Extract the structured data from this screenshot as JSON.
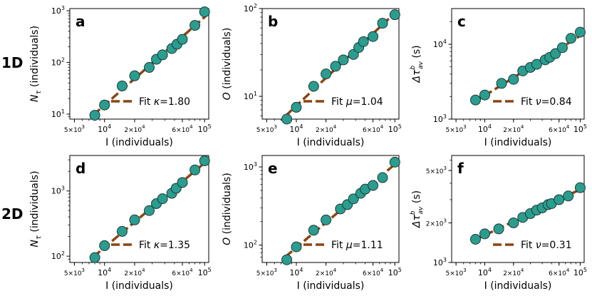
{
  "colors": {
    "marker_fill": "#2a9d8f",
    "marker_edge": "#1f3a36",
    "fit_line": "#8b4513"
  },
  "row_labels": [
    "1D",
    "2D"
  ],
  "chart_data": [
    {
      "type": "scatter",
      "panel": "a",
      "x": [
        8000,
        10000,
        15000,
        20000,
        28000,
        33000,
        38000,
        47000,
        53000,
        60000,
        80000,
        100000
      ],
      "y": [
        9.5,
        15,
        35,
        55,
        80,
        115,
        140,
        185,
        225,
        280,
        520,
        950
      ],
      "xlabel": "I (individuals)",
      "ylabel_main": "N",
      "ylabel_sub": "τ",
      "ylabel_rest": " (individuals)",
      "xlim": [
        4500,
        110000
      ],
      "ylim": [
        8,
        1100
      ],
      "xticks": [
        {
          "v": 5000,
          "m": "5",
          "e": "3"
        },
        {
          "v": 10000,
          "m": "",
          "e": "4"
        },
        {
          "v": 20000,
          "m": "2",
          "e": "4"
        },
        {
          "v": 60000,
          "m": "6",
          "e": "4"
        },
        {
          "v": 100000,
          "m": "",
          "e": "5"
        }
      ],
      "yticks": [
        {
          "v": 10,
          "e": "1"
        },
        {
          "v": 100,
          "e": "2"
        },
        {
          "v": 1000,
          "e": "3"
        }
      ],
      "legend_label": "Fit",
      "param_name": "κ",
      "param_value": "=1.80"
    },
    {
      "type": "scatter",
      "panel": "b",
      "x": [
        8000,
        10000,
        15000,
        20000,
        25000,
        30000,
        38000,
        43000,
        48000,
        60000,
        75000,
        100000
      ],
      "y": [
        5.5,
        7.5,
        13,
        18,
        22,
        26,
        30,
        36,
        42,
        48,
        68,
        85
      ],
      "xlabel": "I (individuals)",
      "ylabel_main": "O",
      "ylabel_sub": "",
      "ylabel_rest": " (individuals)",
      "xlim": [
        4500,
        110000
      ],
      "ylim": [
        5.5,
        100
      ],
      "xticks": [
        {
          "v": 5000,
          "m": "5",
          "e": "3"
        },
        {
          "v": 10000,
          "m": "",
          "e": "4"
        },
        {
          "v": 20000,
          "m": "2",
          "e": "4"
        },
        {
          "v": 60000,
          "m": "6",
          "e": "4"
        },
        {
          "v": 100000,
          "m": "",
          "e": "5"
        }
      ],
      "yticks": [
        {
          "v": 10,
          "e": "1"
        },
        {
          "v": 100,
          "e": "2"
        }
      ],
      "legend_label": "Fit",
      "param_name": "μ",
      "param_value": "=1.04"
    },
    {
      "type": "scatter",
      "panel": "c",
      "x": [
        8000,
        10000,
        15000,
        20000,
        25000,
        30000,
        35000,
        43000,
        48000,
        55000,
        65000,
        80000,
        100000
      ],
      "y": [
        1800,
        2100,
        3000,
        3400,
        4400,
        4900,
        5400,
        6200,
        6700,
        7500,
        9000,
        12000,
        14500
      ],
      "xlabel": "I (individuals)",
      "ylabel_main": "Δτ",
      "ylabel_sub": "av",
      "ylabel_sup": "b",
      "ylabel_rest": " (s)",
      "xlim": [
        4500,
        110000
      ],
      "ylim": [
        1000,
        30000
      ],
      "xticks": [
        {
          "v": 5000,
          "m": "5",
          "e": "3"
        },
        {
          "v": 10000,
          "m": "",
          "e": "4"
        },
        {
          "v": 20000,
          "m": "2",
          "e": "4"
        },
        {
          "v": 60000,
          "m": "6",
          "e": "4"
        },
        {
          "v": 100000,
          "m": "",
          "e": "5"
        }
      ],
      "yticks": [
        {
          "v": 1000,
          "e": "3"
        },
        {
          "v": 10000,
          "e": "4"
        }
      ],
      "legend_label": "Fit",
      "param_name": "ν",
      "param_value": "=0.84"
    },
    {
      "type": "scatter",
      "panel": "d",
      "x": [
        8000,
        10000,
        15000,
        20000,
        28000,
        33000,
        38000,
        47000,
        52000,
        60000,
        80000,
        100000
      ],
      "y": [
        95,
        145,
        240,
        360,
        500,
        640,
        760,
        920,
        1100,
        1350,
        2100,
        2900
      ],
      "xlabel": "I (individuals)",
      "ylabel_main": "N",
      "ylabel_sub": "τ",
      "ylabel_rest": " (individuals)",
      "xlim": [
        4500,
        110000
      ],
      "ylim": [
        80,
        3500
      ],
      "xticks": [
        {
          "v": 5000,
          "m": "5",
          "e": "3"
        },
        {
          "v": 10000,
          "m": "",
          "e": "4"
        },
        {
          "v": 20000,
          "m": "2",
          "e": "4"
        },
        {
          "v": 60000,
          "m": "6",
          "e": "4"
        },
        {
          "v": 100000,
          "m": "",
          "e": "5"
        }
      ],
      "yticks": [
        {
          "v": 100,
          "e": "2"
        },
        {
          "v": 1000,
          "e": "3"
        }
      ],
      "legend_label": "Fit",
      "param_name": "κ",
      "param_value": "=1.35"
    },
    {
      "type": "scatter",
      "panel": "e",
      "x": [
        8000,
        10000,
        15000,
        20000,
        28000,
        33000,
        38000,
        45000,
        50000,
        60000,
        75000,
        100000
      ],
      "y": [
        65,
        95,
        155,
        210,
        290,
        330,
        390,
        460,
        520,
        580,
        730,
        1150
      ],
      "xlabel": "I (individuals)",
      "ylabel_main": "O",
      "ylabel_sub": "",
      "ylabel_rest": " (individuals)",
      "xlim": [
        4500,
        110000
      ],
      "ylim": [
        60,
        1400
      ],
      "xticks": [
        {
          "v": 5000,
          "m": "5",
          "e": "3"
        },
        {
          "v": 10000,
          "m": "",
          "e": "4"
        },
        {
          "v": 20000,
          "m": "2",
          "e": "4"
        },
        {
          "v": 60000,
          "m": "6",
          "e": "4"
        },
        {
          "v": 100000,
          "m": "",
          "e": "5"
        }
      ],
      "yticks": [
        {
          "v": 100,
          "e": "2"
        },
        {
          "v": 1000,
          "e": "3"
        }
      ],
      "legend_label": "Fit",
      "param_name": "μ",
      "param_value": "=1.11"
    },
    {
      "type": "scatter",
      "panel": "f",
      "x": [
        8000,
        10000,
        14000,
        20000,
        25000,
        30000,
        35000,
        40000,
        46000,
        50000,
        60000,
        75000,
        100000
      ],
      "y": [
        1500,
        1650,
        1800,
        2000,
        2200,
        2350,
        2500,
        2600,
        2750,
        2800,
        3000,
        3200,
        3700
      ],
      "xlabel": "I (individuals)",
      "ylabel_main": "Δτ",
      "ylabel_sub": "av",
      "ylabel_sup": "b",
      "ylabel_rest": " (s)",
      "xlim": [
        4500,
        110000
      ],
      "ylim": [
        1000,
        6500
      ],
      "xticks": [
        {
          "v": 5000,
          "m": "5",
          "e": "3"
        },
        {
          "v": 10000,
          "m": "",
          "e": "4"
        },
        {
          "v": 20000,
          "m": "2",
          "e": "4"
        },
        {
          "v": 60000,
          "m": "6",
          "e": "4"
        },
        {
          "v": 100000,
          "m": "",
          "e": "5"
        }
      ],
      "yticks": [
        {
          "v": 1000,
          "m": "",
          "e": "3"
        },
        {
          "v": 2000,
          "m": "2",
          "e": "3"
        },
        {
          "v": 5000,
          "m": "5",
          "e": "3"
        }
      ],
      "legend_label": "Fit",
      "param_name": "ν",
      "param_value": "=0.31"
    }
  ]
}
